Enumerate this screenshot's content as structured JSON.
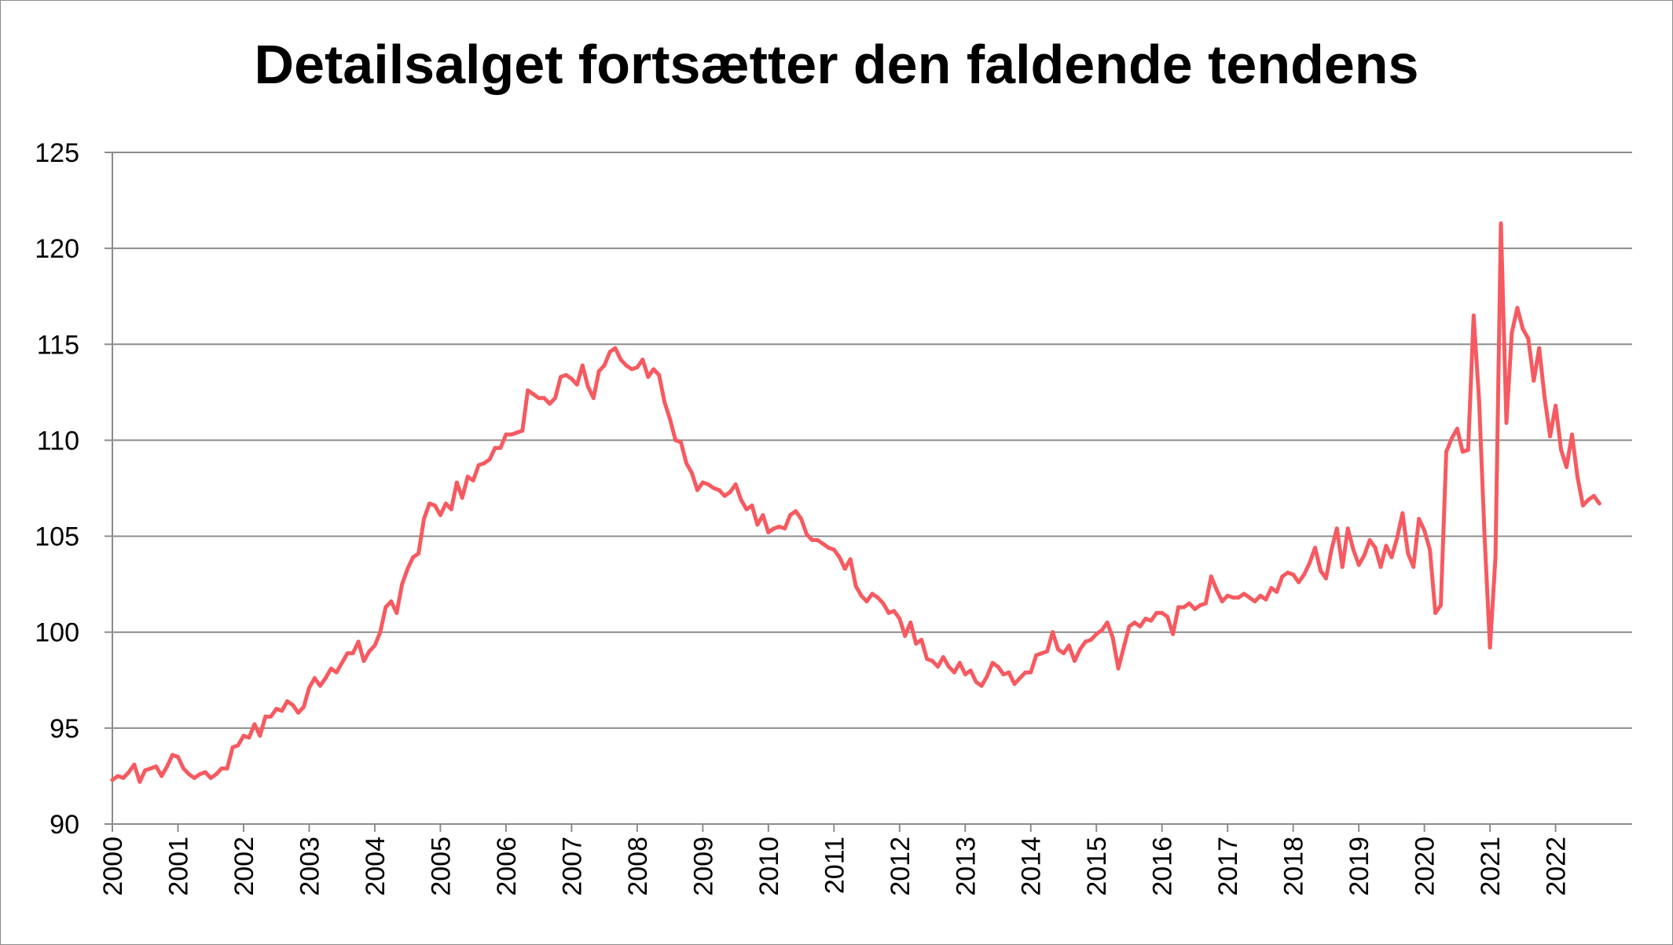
{
  "chart_data": {
    "type": "line",
    "title": "Detailsalget fortsætter den faldende tendens",
    "xlabel": "",
    "ylabel": "",
    "ylim": [
      90,
      125
    ],
    "y_ticks": [
      "90",
      "95",
      "100",
      "105",
      "110",
      "115",
      "120",
      "125"
    ],
    "x_ticks": [
      "2000",
      "2001",
      "2002",
      "2003",
      "2004",
      "2005",
      "2006",
      "2007",
      "2008",
      "2009",
      "2010",
      "2011",
      "2012",
      "2013",
      "2014",
      "2015",
      "2016",
      "2017",
      "2018",
      "2019",
      "2020",
      "2021",
      "2022"
    ],
    "grid": true,
    "legend": "none",
    "line_color": "#f65a60",
    "start": "2000-01",
    "frequency": "monthly",
    "values": [
      92.3,
      92.5,
      92.4,
      92.7,
      93.1,
      92.2,
      92.8,
      92.9,
      93.0,
      92.5,
      93.0,
      93.6,
      93.5,
      92.9,
      92.6,
      92.4,
      92.6,
      92.7,
      92.4,
      92.6,
      92.9,
      92.9,
      94.0,
      94.1,
      94.6,
      94.5,
      95.2,
      94.6,
      95.6,
      95.6,
      96.0,
      95.9,
      96.4,
      96.2,
      95.8,
      96.1,
      97.1,
      97.6,
      97.2,
      97.6,
      98.1,
      97.9,
      98.4,
      98.9,
      98.9,
      99.5,
      98.5,
      99.0,
      99.3,
      100.0,
      101.3,
      101.6,
      101.0,
      102.5,
      103.3,
      103.9,
      104.1,
      105.9,
      106.7,
      106.6,
      106.1,
      106.7,
      106.4,
      107.8,
      107.0,
      108.1,
      107.9,
      108.7,
      108.8,
      109.0,
      109.6,
      109.6,
      110.3,
      110.3,
      110.4,
      110.5,
      112.6,
      112.4,
      112.2,
      112.2,
      111.9,
      112.2,
      113.3,
      113.4,
      113.2,
      112.9,
      113.9,
      112.8,
      112.2,
      113.6,
      113.9,
      114.6,
      114.8,
      114.2,
      113.9,
      113.7,
      113.8,
      114.2,
      113.3,
      113.7,
      113.4,
      112.0,
      111.1,
      110.0,
      109.9,
      108.8,
      108.3,
      107.4,
      107.8,
      107.7,
      107.5,
      107.4,
      107.1,
      107.3,
      107.7,
      106.9,
      106.4,
      106.6,
      105.6,
      106.1,
      105.2,
      105.4,
      105.5,
      105.4,
      106.1,
      106.3,
      105.9,
      105.1,
      104.8,
      104.8,
      104.6,
      104.4,
      104.3,
      103.9,
      103.3,
      103.8,
      102.4,
      101.9,
      101.6,
      102.0,
      101.8,
      101.5,
      101.0,
      101.1,
      100.7,
      99.8,
      100.5,
      99.4,
      99.6,
      98.6,
      98.5,
      98.2,
      98.7,
      98.2,
      97.9,
      98.4,
      97.8,
      98.0,
      97.4,
      97.2,
      97.7,
      98.4,
      98.2,
      97.8,
      97.9,
      97.3,
      97.6,
      97.9,
      97.9,
      98.8,
      98.9,
      99.0,
      100.0,
      99.1,
      98.9,
      99.3,
      98.5,
      99.1,
      99.5,
      99.6,
      99.9,
      100.1,
      100.5,
      99.7,
      98.1,
      99.2,
      100.3,
      100.5,
      100.3,
      100.7,
      100.6,
      101.0,
      101.0,
      100.8,
      99.9,
      101.3,
      101.3,
      101.5,
      101.2,
      101.4,
      101.5,
      102.9,
      102.2,
      101.6,
      101.9,
      101.8,
      101.8,
      102.0,
      101.8,
      101.6,
      101.9,
      101.7,
      102.3,
      102.1,
      102.9,
      103.1,
      103.0,
      102.6,
      103.0,
      103.6,
      104.4,
      103.2,
      102.8,
      104.3,
      105.4,
      103.4,
      105.4,
      104.3,
      103.5,
      104.0,
      104.8,
      104.4,
      103.4,
      104.5,
      103.9,
      104.9,
      106.2,
      104.1,
      103.4,
      105.9,
      105.3,
      104.3,
      101.0,
      101.4,
      109.4,
      110.1,
      110.6,
      109.4,
      109.5,
      116.5,
      112.1,
      105.0,
      99.2,
      103.9,
      121.3,
      110.9,
      115.6,
      116.9,
      115.8,
      115.3,
      113.1,
      114.8,
      112.2,
      110.2,
      111.8,
      109.5,
      108.6,
      110.3,
      108.1,
      106.6,
      106.9,
      107.1,
      106.7
    ]
  }
}
